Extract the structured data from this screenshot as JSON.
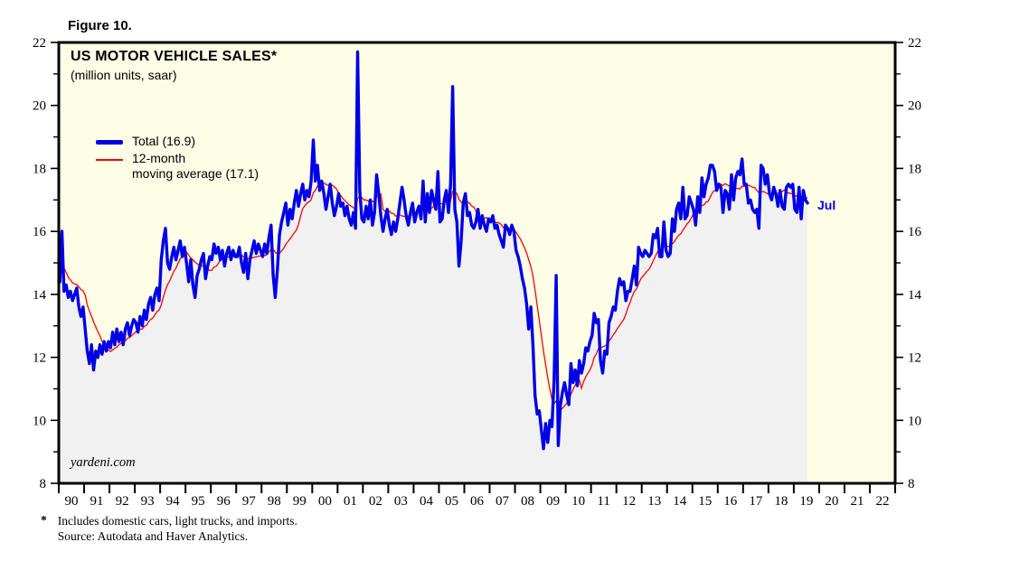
{
  "figure_label": "Figure 10.",
  "chart": {
    "title": "US MOTOR VEHICLE SALES*",
    "subtitle": "(million units, saar)",
    "watermark": "yardeni.com",
    "last_point_label": "Jul",
    "legend": {
      "total": {
        "label": "Total (16.9)"
      },
      "moving_average": {
        "line1": "12-month",
        "line2": "moving average (17.1)"
      }
    }
  },
  "footnote": {
    "marker": "*",
    "line1": "Includes domestic cars, light trucks, and imports.",
    "line2": "Source: Autodata and Haver Analytics."
  },
  "colors": {
    "plot_background": "#FEFEE6",
    "area_fill": "#F1F1F1",
    "total_line": "#0000E8",
    "moving_average_line": "#FF0000",
    "axis": "#000000",
    "annotation_blue": "#0000E8"
  },
  "chart_data": {
    "type": "line",
    "title": "US MOTOR VEHICLE SALES*",
    "subtitle": "(million units, saar)",
    "x_start": "1990-01",
    "x_end": "2019-07",
    "x_range_years": [
      1990,
      2023
    ],
    "x_tick_labels": [
      "90",
      "91",
      "92",
      "93",
      "94",
      "95",
      "96",
      "97",
      "98",
      "99",
      "00",
      "01",
      "02",
      "03",
      "04",
      "05",
      "06",
      "07",
      "08",
      "09",
      "10",
      "11",
      "12",
      "13",
      "14",
      "15",
      "16",
      "17",
      "18",
      "19",
      "20",
      "21",
      "22"
    ],
    "ylim": [
      8,
      22
    ],
    "y_ticks": [
      8,
      10,
      12,
      14,
      16,
      18,
      20,
      22
    ],
    "grid": false,
    "legend_position": "top-left-inside",
    "annotations": [
      {
        "text": "Jul",
        "attach": "last-point-of-total"
      }
    ],
    "series": [
      {
        "name": "Total",
        "legend_label": "Total (16.9)",
        "latest_value": 16.9,
        "frequency": "monthly",
        "monthly_values": [
          14.4,
          16.0,
          14.1,
          14.3,
          13.9,
          14.1,
          13.8,
          14.0,
          14.2,
          13.6,
          13.3,
          13.6,
          12.9,
          12.2,
          11.8,
          12.4,
          11.6,
          12.2,
          12.0,
          12.4,
          12.1,
          12.5,
          12.2,
          12.5,
          12.3,
          12.8,
          12.4,
          12.9,
          12.5,
          12.8,
          12.4,
          12.9,
          13.1,
          12.7,
          13.0,
          13.2,
          13.1,
          12.8,
          13.3,
          13.0,
          13.5,
          13.2,
          13.7,
          13.9,
          13.5,
          14.0,
          14.2,
          13.8,
          15.1,
          15.7,
          16.1,
          15.0,
          14.8,
          15.2,
          15.5,
          15.1,
          15.4,
          15.7,
          15.2,
          15.5,
          15.0,
          14.4,
          15.1,
          14.3,
          13.9,
          14.6,
          14.8,
          15.1,
          15.3,
          14.5,
          14.9,
          15.2,
          15.1,
          15.6,
          15.3,
          15.5,
          15.1,
          15.4,
          14.9,
          15.3,
          15.5,
          15.1,
          15.4,
          15.2,
          15.2,
          15.5,
          15.0,
          14.7,
          15.3,
          14.5,
          15.1,
          15.4,
          15.7,
          15.3,
          15.6,
          15.4,
          15.2,
          15.6,
          15.3,
          15.8,
          16.2,
          14.6,
          13.9,
          14.8,
          15.9,
          16.3,
          16.6,
          16.9,
          16.2,
          16.7,
          16.4,
          16.9,
          17.3,
          16.8,
          17.2,
          17.5,
          17.0,
          17.3,
          17.1,
          17.6,
          18.9,
          17.6,
          18.1,
          17.3,
          17.6,
          17.2,
          16.7,
          17.1,
          17.5,
          16.9,
          16.5,
          16.8,
          17.2,
          16.8,
          16.9,
          16.5,
          16.8,
          16.4,
          16.2,
          16.6,
          16.1,
          21.7,
          17.3,
          16.4,
          16.3,
          16.8,
          16.4,
          17.0,
          16.2,
          16.6,
          17.8,
          17.2,
          16.5,
          16.0,
          16.4,
          16.7,
          16.2,
          15.9,
          16.3,
          16.0,
          16.4,
          16.9,
          17.4,
          17.0,
          16.5,
          16.2,
          16.6,
          16.9,
          16.3,
          16.6,
          16.8,
          16.4,
          17.6,
          16.3,
          17.2,
          16.6,
          17.3,
          17.0,
          16.7,
          17.9,
          16.3,
          16.4,
          17.0,
          17.3,
          16.6,
          17.5,
          20.6,
          16.7,
          16.3,
          14.9,
          15.7,
          16.9,
          17.2,
          16.5,
          16.6,
          16.2,
          16.1,
          16.3,
          16.7,
          16.1,
          16.5,
          16.2,
          16.0,
          16.4,
          16.3,
          16.5,
          16.1,
          16.2,
          15.9,
          15.7,
          15.5,
          16.2,
          16.1,
          15.9,
          16.2,
          16.0,
          15.4,
          15.2,
          14.9,
          14.5,
          14.2,
          13.7,
          12.9,
          13.6,
          12.4,
          10.8,
          10.2,
          10.3,
          9.7,
          9.1,
          9.9,
          9.3,
          10.0,
          9.8,
          11.3,
          14.6,
          9.2,
          10.5,
          10.9,
          11.2,
          10.8,
          10.5,
          11.8,
          11.2,
          11.6,
          11.1,
          11.9,
          11.5,
          11.8,
          12.3,
          12.2,
          12.5,
          12.7,
          13.4,
          13.1,
          13.2,
          11.9,
          11.5,
          12.2,
          12.1,
          13.1,
          13.3,
          13.6,
          13.5,
          14.1,
          14.5,
          14.3,
          14.4,
          13.8,
          14.1,
          14.1,
          14.5,
          14.9,
          14.3,
          15.5,
          15.3,
          15.2,
          15.4,
          15.3,
          15.2,
          15.3,
          15.9,
          15.8,
          16.1,
          15.2,
          15.2,
          16.3,
          15.4,
          15.2,
          15.3,
          16.4,
          16.0,
          16.7,
          16.9,
          16.4,
          17.4,
          16.4,
          16.5,
          17.1,
          16.9,
          16.7,
          16.2,
          17.1,
          16.6,
          17.7,
          17.1,
          17.5,
          17.7,
          18.1,
          18.1,
          17.9,
          17.3,
          17.5,
          17.4,
          16.6,
          17.3,
          17.2,
          16.7,
          17.8,
          17.0,
          17.7,
          17.9,
          17.8,
          18.3,
          17.5,
          17.5,
          16.9,
          17.0,
          16.7,
          16.6,
          16.7,
          16.1,
          18.1,
          18.0,
          17.5,
          17.8,
          17.2,
          17.0,
          17.4,
          17.2,
          16.8,
          17.3,
          16.8,
          16.7,
          17.4,
          17.5,
          17.4,
          17.5,
          16.7,
          16.6,
          17.4,
          16.4,
          17.3,
          17.0,
          16.9
        ]
      },
      {
        "name": "12-month moving average",
        "legend_label": "12-month moving average (17.1)",
        "latest_value": 17.1,
        "derived_from": "Total",
        "window_months": 12
      }
    ]
  }
}
